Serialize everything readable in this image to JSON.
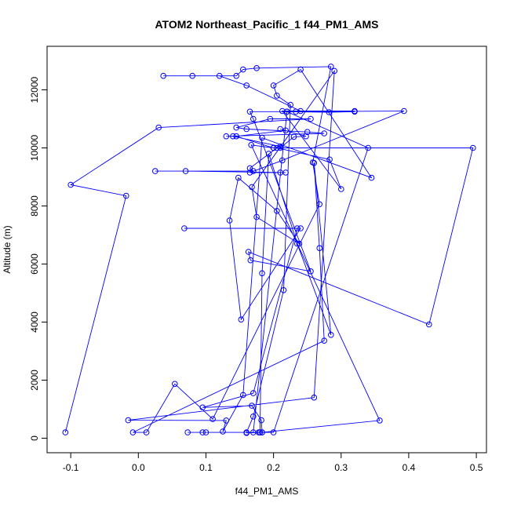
{
  "chart_data": {
    "type": "line",
    "title": "ATOM2 Northeast_Pacific_1 f44_PM1_AMS",
    "xlabel": "f44_PM1_AMS",
    "ylabel": "Altitude (m)",
    "xlim": [
      -0.135,
      0.515
    ],
    "ylim": [
      -500,
      13500
    ],
    "xticks": [
      -0.1,
      0.0,
      0.1,
      0.2,
      0.3,
      0.4,
      0.5
    ],
    "xtick_labels": [
      "-0.1",
      "0.0",
      "0.1",
      "0.2",
      "0.3",
      "0.4",
      "0.5"
    ],
    "yticks": [
      0,
      2000,
      4000,
      6000,
      8000,
      10000,
      12000
    ],
    "ytick_labels": [
      "0",
      "2000",
      "4000",
      "6000",
      "8000",
      "10000",
      "12000"
    ],
    "grid": false,
    "series": [
      {
        "name": "",
        "color": "#0000ff",
        "marker": "open-circle",
        "points": [
          [
            -0.108,
            200
          ],
          [
            -0.018,
            8350
          ],
          [
            -0.1,
            8730
          ],
          [
            0.03,
            10700
          ],
          [
            0.255,
            11000
          ],
          [
            0.195,
            11000
          ],
          [
            0.145,
            10700
          ],
          [
            0.16,
            10650
          ],
          [
            0.25,
            10550
          ],
          [
            0.275,
            10500
          ],
          [
            0.13,
            10400
          ],
          [
            0.14,
            10400
          ],
          [
            0.21,
            10050
          ],
          [
            0.2,
            10000
          ],
          [
            0.145,
            10400
          ],
          [
            0.218,
            10600
          ],
          [
            0.21,
            10650
          ],
          [
            0.248,
            10400
          ],
          [
            0.23,
            10380
          ],
          [
            0.21,
            10000
          ],
          [
            0.495,
            10000
          ],
          [
            0.43,
            3920
          ],
          [
            0.163,
            6420
          ],
          [
            0.166,
            6130
          ],
          [
            0.255,
            5750
          ],
          [
            0.17,
            11000
          ],
          [
            0.165,
            11250
          ],
          [
            0.32,
            11250
          ],
          [
            0.282,
            11230
          ],
          [
            0.22,
            11250
          ],
          [
            0.233,
            11250
          ],
          [
            0.393,
            11270
          ],
          [
            0.213,
            9570
          ],
          [
            0.165,
            9150
          ],
          [
            0.21,
            9150
          ],
          [
            0.218,
            9150
          ],
          [
            0.07,
            9200
          ],
          [
            0.025,
            9200
          ],
          [
            0.17,
            9200
          ],
          [
            0.165,
            9300
          ],
          [
            0.205,
            10000
          ],
          [
            0.283,
            9600
          ],
          [
            0.3,
            8580
          ],
          [
            0.213,
            11270
          ],
          [
            0.32,
            11270
          ],
          [
            0.24,
            11270
          ],
          [
            0.16,
            12150
          ],
          [
            0.12,
            12480
          ],
          [
            0.037,
            12480
          ],
          [
            0.08,
            12480
          ],
          [
            0.145,
            12480
          ],
          [
            0.155,
            12700
          ],
          [
            0.175,
            12750
          ],
          [
            0.285,
            12800
          ],
          [
            0.258,
            9500
          ],
          [
            0.268,
            8060
          ],
          [
            0.11,
            660
          ],
          [
            0.054,
            1870
          ],
          [
            0.012,
            200
          ],
          [
            -0.008,
            200
          ],
          [
            0.275,
            3360
          ],
          [
            0.268,
            6550
          ],
          [
            0.26,
            9480
          ],
          [
            0.285,
            3560
          ],
          [
            0.235,
            6700
          ],
          [
            0.193,
            9800
          ],
          [
            0.183,
            5680
          ],
          [
            0.18,
            200
          ],
          [
            0.073,
            200
          ],
          [
            0.1,
            200
          ],
          [
            0.095,
            200
          ],
          [
            0.183,
            200
          ],
          [
            0.182,
            620
          ],
          [
            0.168,
            1120
          ],
          [
            0.095,
            1060
          ],
          [
            0.17,
            1550
          ],
          [
            0.235,
            7230
          ],
          [
            0.068,
            7230
          ],
          [
            0.24,
            7230
          ],
          [
            0.152,
            4090
          ],
          [
            0.135,
            7500
          ],
          [
            0.148,
            8970
          ],
          [
            0.205,
            7830
          ],
          [
            0.238,
            6700
          ],
          [
            0.175,
            7620
          ],
          [
            0.168,
            8650
          ],
          [
            0.29,
            12650
          ],
          [
            0.26,
            1400
          ],
          [
            -0.015,
            620
          ],
          [
            0.13,
            610
          ],
          [
            0.125,
            230
          ],
          [
            0.155,
            1490
          ],
          [
            0.183,
            10350
          ],
          [
            0.345,
            8970
          ],
          [
            0.24,
            12700
          ],
          [
            0.2,
            12150
          ],
          [
            0.205,
            11800
          ],
          [
            0.225,
            11480
          ],
          [
            0.215,
            5100
          ],
          [
            0.17,
            750
          ],
          [
            0.16,
            200
          ],
          [
            0.18,
            200
          ],
          [
            0.2,
            200
          ],
          [
            0.34,
            10000
          ],
          [
            0.22,
            11250
          ],
          [
            0.17,
            200
          ],
          [
            0.178,
            200
          ],
          [
            0.16,
            180
          ],
          [
            0.183,
            200
          ],
          [
            0.357,
            610
          ],
          [
            0.167,
            10100
          ],
          [
            0.2,
            10000
          ]
        ]
      }
    ]
  }
}
